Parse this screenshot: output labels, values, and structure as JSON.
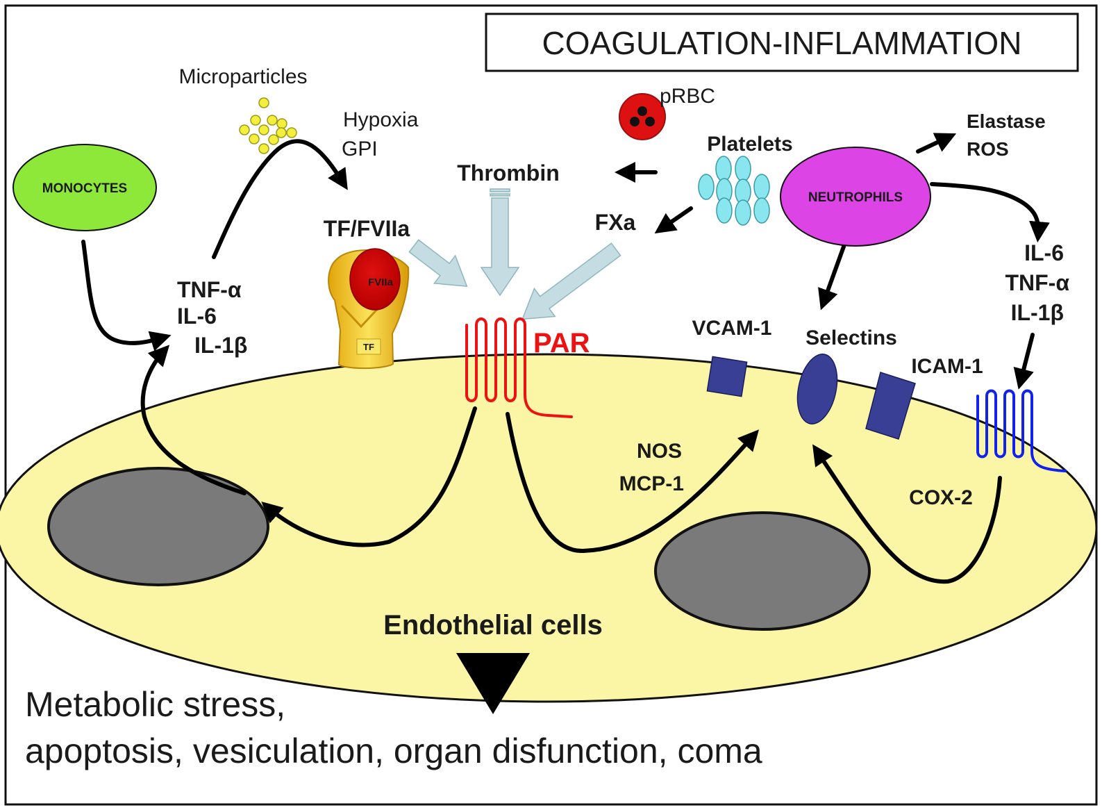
{
  "title": "COAGULATION-INFLAMMATION",
  "labels": {
    "microparticles": "Microparticles",
    "hypoxia": "Hypoxia",
    "gpi": "GPI",
    "prbc": "pRBC",
    "platelets": "Platelets",
    "elastase": "Elastase",
    "ros": "ROS",
    "monocytes": "MONOCYTES",
    "neutrophils": "NEUTROPHILS",
    "thrombin": "Thrombin",
    "tf_fviia": "TF/FVIIa",
    "fxa": "FXa",
    "tnf_alpha_left": "TNF-α",
    "il6_left": "IL-6",
    "il1b_left": "IL-1β",
    "fviia_small": "FVIIa",
    "tf_small": "TF",
    "par": "PAR",
    "vcam1": "VCAM-1",
    "selectins": "Selectins",
    "icam1": "ICAM-1",
    "il6_right": "IL-6",
    "tnf_alpha_right": "TNF-α",
    "il1b_right": "IL-1β",
    "nos": "NOS",
    "mcp1": "MCP-1",
    "cox2": "COX-2",
    "endothelial": "Endothelial cells",
    "outcome_line1": "Metabolic stress,",
    "outcome_line2": "apoptosis, vesiculation, organ disfunction, coma"
  },
  "colors": {
    "cell_fill": "#fbf6a6",
    "nucleus": "#7a7a7a",
    "monocytes": "#8ee83a",
    "neutrophils": "#dd44e6",
    "platelets": "#8ae6ee",
    "prbc": "#dd1111",
    "microparticles": "#f4ef3a",
    "par": "#ee1111",
    "receptor_blue": "#1122ee",
    "adhesion": "#3a3f96",
    "wide_arrow": "#c5dde2",
    "tf_yellow": "#f2c81e"
  }
}
